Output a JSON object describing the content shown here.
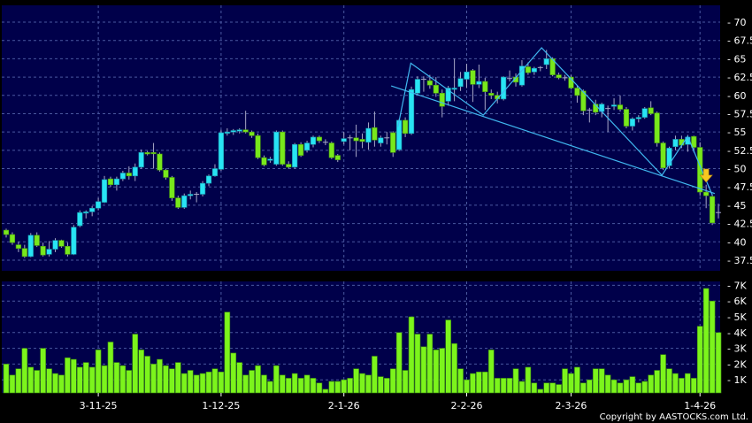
{
  "copyright": "Copyright by AASTOCKS.com Ltd.",
  "colors": {
    "background": "#000000",
    "plot": "#00004a",
    "grid": "#4a58a0",
    "up": "#28e4f4",
    "down": "#78e81c",
    "volume": "#7cf41c",
    "trendline": "#40b8f0",
    "arrow": "#f8c820",
    "wick": "#a8a8c8"
  },
  "chart_data": [
    {
      "type": "candlestick",
      "ylim": [
        37.5,
        70
      ],
      "yticks": [
        "37.5",
        "40",
        "42.5",
        "45",
        "47.5",
        "50",
        "52.5",
        "55",
        "57.5",
        "60",
        "62.5",
        "65",
        "67.5",
        "70"
      ],
      "grid": true,
      "xtick_labels": [
        {
          "index": 15,
          "label": "3-11-25"
        },
        {
          "index": 35,
          "label": "1-12-25"
        },
        {
          "index": 55,
          "label": "2-1-26"
        },
        {
          "index": 75,
          "label": "2-2-26"
        },
        {
          "index": 92,
          "label": "2-3-26"
        },
        {
          "index": 113,
          "label": "1-4-26"
        }
      ],
      "ohlc": [
        [
          41.6,
          41.8,
          40.6,
          41.0
        ],
        [
          41.0,
          41.3,
          39.6,
          39.9
        ],
        [
          39.6,
          40.0,
          38.6,
          39.1
        ],
        [
          39.1,
          39.6,
          37.8,
          38.0
        ],
        [
          38.0,
          41.2,
          37.9,
          40.9
        ],
        [
          40.9,
          41.3,
          39.3,
          39.5
        ],
        [
          39.4,
          39.9,
          38.0,
          38.2
        ],
        [
          38.3,
          40.1,
          38.0,
          39.0
        ],
        [
          39.0,
          40.5,
          38.6,
          40.2
        ],
        [
          40.2,
          40.3,
          39.2,
          39.4
        ],
        [
          39.4,
          39.9,
          38.0,
          38.3
        ],
        [
          38.3,
          42.3,
          38.2,
          42.0
        ],
        [
          42.2,
          44.3,
          42.0,
          44.0
        ],
        [
          44.0,
          44.3,
          43.2,
          44.1
        ],
        [
          44.1,
          44.9,
          43.5,
          44.6
        ],
        [
          44.6,
          46.0,
          44.3,
          45.5
        ],
        [
          45.4,
          49.0,
          45.3,
          48.5
        ],
        [
          48.6,
          48.9,
          47.5,
          47.8
        ],
        [
          47.8,
          48.9,
          47.0,
          48.6
        ],
        [
          48.6,
          49.7,
          48.3,
          49.4
        ],
        [
          49.4,
          50.3,
          48.5,
          49.0
        ],
        [
          49.0,
          50.7,
          48.3,
          50.2
        ],
        [
          50.2,
          52.6,
          50.0,
          52.2
        ],
        [
          52.2,
          52.4,
          51.8,
          52.0
        ],
        [
          52.2,
          53.5,
          50.0,
          52.1
        ],
        [
          52.0,
          52.2,
          49.6,
          49.8
        ],
        [
          49.8,
          50.0,
          48.5,
          48.8
        ],
        [
          48.8,
          49.0,
          45.6,
          46.0
        ],
        [
          46.0,
          46.3,
          44.5,
          44.7
        ],
        [
          44.7,
          46.6,
          44.5,
          46.3
        ],
        [
          46.3,
          47.0,
          45.8,
          46.5
        ],
        [
          46.5,
          46.8,
          45.4,
          46.5
        ],
        [
          46.5,
          48.3,
          46.2,
          48.0
        ],
        [
          48.0,
          49.2,
          47.6,
          49.0
        ],
        [
          49.0,
          50.6,
          48.9,
          50.0
        ],
        [
          49.9,
          55.3,
          49.7,
          54.9
        ],
        [
          54.9,
          55.5,
          54.5,
          55.0
        ],
        [
          55.0,
          55.4,
          54.6,
          55.2
        ],
        [
          55.2,
          55.5,
          54.8,
          55.3
        ],
        [
          55.3,
          57.9,
          54.8,
          55.0
        ],
        [
          55.0,
          55.2,
          54.2,
          54.5
        ],
        [
          54.5,
          54.8,
          51.3,
          51.5
        ],
        [
          51.5,
          51.8,
          50.3,
          50.5
        ],
        [
          51.2,
          51.6,
          50.8,
          51.3
        ],
        [
          50.6,
          55.2,
          50.4,
          55.0
        ],
        [
          55.0,
          55.2,
          50.4,
          50.6
        ],
        [
          50.6,
          51.0,
          50.0,
          50.2
        ],
        [
          50.2,
          53.5,
          50.0,
          53.3
        ],
        [
          53.3,
          53.6,
          51.6,
          51.8
        ],
        [
          52.5,
          53.8,
          52.2,
          53.5
        ],
        [
          53.3,
          54.5,
          52.9,
          54.3
        ],
        [
          54.3,
          54.5,
          53.5,
          53.8
        ],
        [
          53.6,
          54.0,
          53.2,
          53.6
        ],
        [
          53.5,
          53.7,
          51.3,
          51.5
        ],
        [
          51.8,
          52.0,
          50.9,
          51.2
        ],
        [
          53.7,
          55.0,
          53.3,
          54.1
        ],
        [
          54.2,
          54.6,
          52.5,
          54.2
        ],
        [
          54.2,
          56.0,
          51.6,
          53.8
        ],
        [
          54.0,
          54.8,
          52.8,
          53.7
        ],
        [
          53.6,
          56.3,
          52.6,
          55.5
        ],
        [
          55.6,
          57.8,
          53.0,
          53.9
        ],
        [
          53.5,
          54.5,
          53.0,
          54.2
        ],
        [
          54.2,
          55.0,
          53.3,
          54.2
        ],
        [
          54.9,
          55.1,
          51.6,
          52.2
        ],
        [
          52.6,
          56.8,
          52.4,
          56.6
        ],
        [
          56.6,
          57.0,
          54.3,
          54.8
        ],
        [
          54.8,
          61.2,
          54.6,
          60.8
        ],
        [
          60.3,
          62.6,
          60.0,
          62.2
        ],
        [
          62.2,
          62.6,
          60.5,
          62.2
        ],
        [
          62.0,
          62.8,
          60.9,
          61.4
        ],
        [
          61.4,
          62.5,
          59.8,
          60.3
        ],
        [
          60.3,
          60.8,
          57.0,
          58.5
        ],
        [
          59.2,
          61.3,
          58.6,
          61.0
        ],
        [
          60.9,
          65.0,
          59.2,
          61.0
        ],
        [
          61.2,
          63.2,
          60.6,
          62.3
        ],
        [
          62.2,
          64.3,
          61.0,
          63.2
        ],
        [
          63.4,
          63.6,
          59.1,
          61.5
        ],
        [
          61.5,
          64.2,
          61.0,
          61.9
        ],
        [
          61.9,
          62.4,
          58.0,
          60.5
        ],
        [
          60.3,
          60.8,
          59.5,
          60.0
        ],
        [
          60.0,
          60.5,
          58.9,
          59.5
        ],
        [
          59.5,
          62.6,
          59.3,
          62.5
        ],
        [
          62.3,
          63.4,
          61.9,
          62.3
        ],
        [
          62.5,
          63.0,
          61.2,
          61.8
        ],
        [
          61.4,
          64.8,
          61.2,
          64.0
        ],
        [
          63.9,
          64.5,
          62.8,
          63.1
        ],
        [
          63.2,
          63.9,
          62.8,
          63.7
        ],
        [
          63.8,
          64.0,
          63.3,
          63.8
        ],
        [
          64.2,
          66.2,
          63.6,
          65.0
        ],
        [
          65.0,
          65.2,
          62.6,
          62.8
        ],
        [
          62.8,
          63.1,
          62.2,
          62.4
        ],
        [
          62.4,
          62.8,
          62.0,
          62.4
        ],
        [
          62.5,
          62.8,
          60.8,
          61.0
        ],
        [
          61.0,
          61.4,
          59.0,
          60.0
        ],
        [
          60.6,
          60.8,
          57.3,
          57.9
        ],
        [
          58.0,
          58.3,
          56.3,
          58.0
        ],
        [
          58.8,
          59.4,
          57.3,
          57.7
        ],
        [
          57.8,
          59.0,
          57.0,
          58.8
        ],
        [
          58.2,
          58.6,
          55.0,
          58.2
        ],
        [
          58.5,
          59.6,
          58.0,
          58.7
        ],
        [
          58.7,
          60.0,
          57.8,
          58.1
        ],
        [
          58.1,
          58.4,
          55.5,
          55.8
        ],
        [
          55.8,
          57.0,
          55.2,
          56.8
        ],
        [
          56.8,
          57.3,
          56.3,
          57.0
        ],
        [
          57.0,
          58.4,
          56.8,
          58.2
        ],
        [
          58.3,
          59.2,
          57.3,
          57.5
        ],
        [
          57.6,
          57.8,
          53.0,
          53.5
        ],
        [
          53.5,
          53.7,
          49.8,
          50.1
        ],
        [
          50.4,
          53.0,
          50.0,
          52.8
        ],
        [
          53.0,
          54.5,
          52.5,
          54.0
        ],
        [
          54.0,
          54.5,
          52.8,
          53.2
        ],
        [
          53.3,
          54.6,
          52.3,
          54.3
        ],
        [
          54.4,
          54.5,
          52.2,
          52.9
        ],
        [
          52.9,
          53.6,
          46.3,
          46.8
        ],
        [
          46.8,
          47.8,
          44.6,
          46.3
        ],
        [
          46.2,
          46.5,
          42.3,
          42.6
        ],
        [
          44.0,
          45.2,
          43.2,
          44.0
        ]
      ],
      "trendlines": [
        {
          "points": [
            [
              62.7,
              61.3
            ],
            [
              115.4,
              46.6
            ]
          ]
        },
        {
          "points": [
            [
              63.8,
              55.7
            ],
            [
              65.9,
              64.4
            ],
            [
              77.7,
              57.3
            ],
            [
              87.2,
              66.5
            ],
            [
              106.8,
              49.1
            ],
            [
              111,
              54.4
            ],
            [
              115,
              46.4
            ]
          ]
        }
      ],
      "arrow_marker": {
        "index": 114,
        "price": 48.5,
        "direction": "down"
      }
    },
    {
      "type": "bar",
      "ylim": [
        0,
        7.2
      ],
      "yticks": [
        "1K",
        "2K",
        "3K",
        "4K",
        "5K",
        "6K",
        "7K"
      ],
      "unit": "K",
      "values": [
        2.0,
        1.3,
        1.7,
        3.0,
        1.8,
        1.6,
        3.0,
        1.7,
        1.4,
        1.3,
        2.4,
        2.3,
        1.8,
        2.1,
        1.8,
        2.9,
        1.9,
        3.4,
        2.1,
        1.9,
        1.6,
        3.9,
        2.9,
        2.5,
        2.0,
        2.3,
        1.9,
        1.7,
        2.1,
        1.4,
        1.6,
        1.3,
        1.4,
        1.5,
        1.7,
        1.5,
        5.3,
        2.7,
        2.1,
        1.3,
        1.6,
        1.9,
        1.3,
        0.9,
        1.9,
        1.3,
        1.1,
        1.4,
        1.1,
        1.3,
        1.1,
        0.8,
        0.4,
        0.9,
        0.9,
        1.0,
        1.1,
        1.7,
        1.4,
        1.3,
        2.5,
        1.2,
        1.1,
        1.7,
        4.0,
        1.6,
        5.0,
        3.9,
        3.1,
        3.9,
        2.9,
        3.0,
        4.8,
        3.3,
        1.7,
        1.0,
        1.4,
        1.5,
        1.5,
        2.9,
        1.1,
        1.1,
        1.1,
        1.7,
        0.9,
        1.8,
        0.8,
        0.4,
        0.8,
        0.8,
        0.7,
        1.7,
        1.4,
        1.8,
        0.8,
        1.0,
        1.7,
        1.7,
        1.3,
        1.0,
        0.8,
        1.0,
        1.2,
        0.8,
        0.9,
        1.3,
        1.6,
        2.6,
        1.7,
        1.4,
        1.1,
        1.4,
        1.1,
        4.4,
        6.8,
        6.0,
        4.0
      ]
    }
  ]
}
